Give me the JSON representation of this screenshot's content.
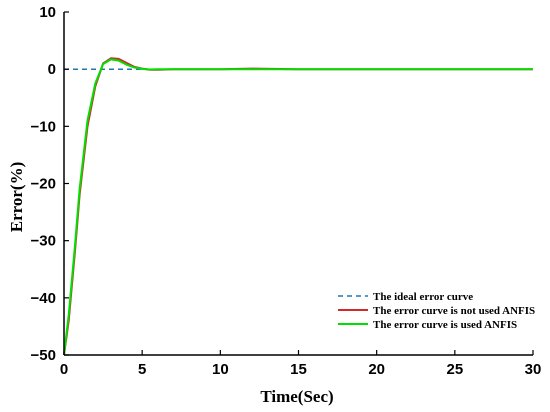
{
  "chart_data": {
    "type": "line",
    "xlabel": "Time(Sec)",
    "ylabel": "Error(%)",
    "xlim": [
      0,
      30
    ],
    "ylim": [
      -50,
      10
    ],
    "xticks": [
      0,
      5,
      10,
      15,
      20,
      25,
      30
    ],
    "yticks": [
      -50,
      -40,
      -30,
      -20,
      -10,
      0,
      10
    ],
    "x_tick_labels": [
      "0",
      "5",
      "10",
      "15",
      "20",
      "25",
      "30"
    ],
    "y_tick_labels": [
      "−50",
      "−40",
      "−30",
      "−20",
      "−10",
      "0",
      "10"
    ],
    "grid": false,
    "legend_position": "bottom-right",
    "series": [
      {
        "name": "The ideal error curve",
        "color": "#1f77b4",
        "style": "dashed",
        "x": [
          0,
          5
        ],
        "y": [
          0,
          0
        ]
      },
      {
        "name": "The error curve is not used ANFIS",
        "color": "#d62728",
        "style": "solid",
        "x": [
          0,
          0.3,
          0.7,
          1.0,
          1.5,
          2.0,
          2.5,
          3.0,
          3.5,
          4.0,
          4.5,
          5.0,
          5.5,
          6.0,
          7.0,
          8.0,
          10.0,
          12.0,
          15.0,
          20.0,
          25.0,
          30.0
        ],
        "y": [
          -50,
          -44,
          -32,
          -22,
          -10,
          -3,
          1.0,
          1.9,
          1.8,
          1.1,
          0.4,
          0.1,
          -0.1,
          -0.1,
          0,
          0,
          0,
          0.1,
          0,
          0,
          0,
          0
        ]
      },
      {
        "name": "The error curve is used ANFIS",
        "color": "#00e000",
        "style": "solid",
        "x": [
          0,
          0.3,
          0.7,
          1.0,
          1.5,
          2.0,
          2.5,
          3.0,
          3.5,
          4.0,
          4.5,
          5.0,
          5.5,
          6.0,
          7.0,
          8.0,
          10.0,
          12.0,
          15.0,
          20.0,
          25.0,
          30.0
        ],
        "y": [
          -50,
          -43,
          -31,
          -21,
          -9,
          -2.5,
          0.9,
          1.7,
          1.5,
          0.8,
          0.3,
          0.05,
          -0.05,
          0,
          0,
          0,
          0,
          0,
          0,
          0,
          0,
          0
        ]
      }
    ]
  }
}
